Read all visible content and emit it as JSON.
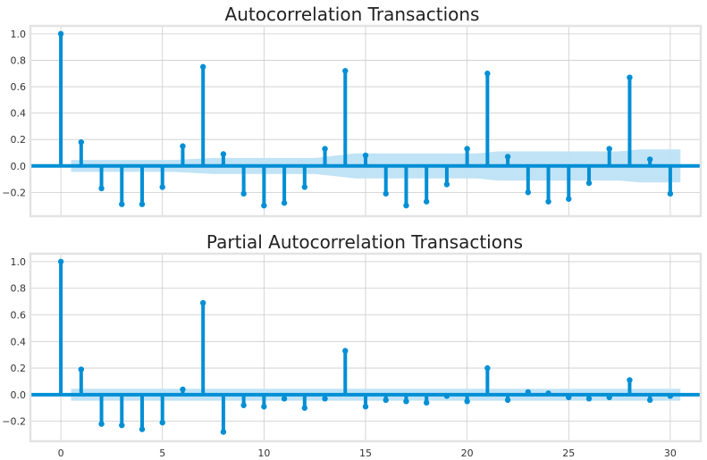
{
  "chart_data": [
    {
      "type": "stem",
      "title": "Autocorrelation Transactions",
      "xlabel": "",
      "ylabel": "",
      "xlim": [
        -1.5,
        31.5
      ],
      "ylim": [
        -0.38,
        1.06
      ],
      "x_ticks": [
        0,
        5,
        10,
        15,
        20,
        25,
        30
      ],
      "y_ticks": [
        -0.2,
        0.0,
        0.2,
        0.4,
        0.6,
        0.8,
        1.0
      ],
      "y_tick_labels": [
        "−0.2",
        "0.0",
        "0.2",
        "0.4",
        "0.6",
        "0.8",
        "1.0"
      ],
      "grid": true,
      "lags": [
        0,
        1,
        2,
        3,
        4,
        5,
        6,
        7,
        8,
        9,
        10,
        11,
        12,
        13,
        14,
        15,
        16,
        17,
        18,
        19,
        20,
        21,
        22,
        23,
        24,
        25,
        26,
        27,
        28,
        29,
        30
      ],
      "values": [
        1.0,
        0.18,
        -0.17,
        -0.29,
        -0.29,
        -0.16,
        0.15,
        0.75,
        0.09,
        -0.21,
        -0.3,
        -0.28,
        -0.16,
        0.13,
        0.72,
        0.08,
        -0.21,
        -0.3,
        -0.27,
        -0.14,
        0.13,
        0.7,
        0.07,
        -0.2,
        -0.27,
        -0.25,
        -0.13,
        0.13,
        0.67,
        0.05,
        -0.21
      ],
      "confidence_band": {
        "x": [
          0.5,
          5.5,
          7.5,
          12.5,
          14.5,
          20.5,
          21.5,
          27.5,
          28.5,
          30.5
        ],
        "upper": [
          0.045,
          0.045,
          0.06,
          0.06,
          0.095,
          0.095,
          0.11,
          0.11,
          0.125,
          0.125
        ],
        "lower": [
          -0.045,
          -0.045,
          -0.06,
          -0.06,
          -0.095,
          -0.095,
          -0.11,
          -0.11,
          -0.125,
          -0.125
        ]
      },
      "colors": {
        "stem": "#008fd5",
        "band": "#bde1f5",
        "zero_line": "#008fd5"
      }
    },
    {
      "type": "stem",
      "title": "Partial Autocorrelation Transactions",
      "xlabel": "",
      "ylabel": "",
      "xlim": [
        -1.5,
        31.5
      ],
      "ylim": [
        -0.35,
        1.06
      ],
      "x_ticks": [
        0,
        5,
        10,
        15,
        20,
        25,
        30
      ],
      "x_tick_labels": [
        "0",
        "5",
        "10",
        "15",
        "20",
        "25",
        "30"
      ],
      "y_ticks": [
        -0.2,
        0.0,
        0.2,
        0.4,
        0.6,
        0.8,
        1.0
      ],
      "y_tick_labels": [
        "−0.2",
        "0.0",
        "0.2",
        "0.4",
        "0.6",
        "0.8",
        "1.0"
      ],
      "grid": true,
      "lags": [
        0,
        1,
        2,
        3,
        4,
        5,
        6,
        7,
        8,
        9,
        10,
        11,
        12,
        13,
        14,
        15,
        16,
        17,
        18,
        19,
        20,
        21,
        22,
        23,
        24,
        25,
        26,
        27,
        28,
        29,
        30
      ],
      "values": [
        1.0,
        0.19,
        -0.22,
        -0.23,
        -0.26,
        -0.21,
        0.04,
        0.69,
        -0.28,
        -0.08,
        -0.09,
        -0.03,
        -0.1,
        -0.03,
        0.33,
        -0.09,
        -0.04,
        -0.05,
        -0.06,
        -0.01,
        -0.05,
        0.2,
        -0.04,
        0.02,
        0.01,
        -0.02,
        -0.03,
        -0.02,
        0.11,
        -0.04,
        -0.01
      ],
      "confidence_band": {
        "x": [
          0.5,
          30.5
        ],
        "upper": [
          0.045,
          0.045
        ],
        "lower": [
          -0.045,
          -0.045
        ]
      },
      "colors": {
        "stem": "#008fd5",
        "band": "#bde1f5",
        "zero_line": "#008fd5"
      }
    }
  ]
}
